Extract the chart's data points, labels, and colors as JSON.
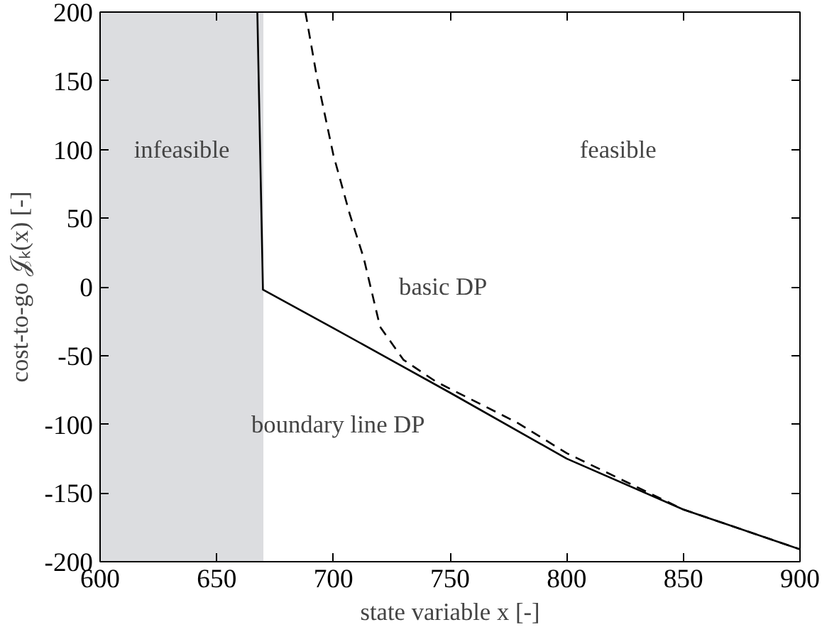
{
  "chart_data": {
    "type": "line",
    "xlabel": "state variable x [-]",
    "ylabel": "cost-to-go 𝒥ₖ(x) [-]",
    "xlim": [
      600,
      900
    ],
    "ylim": [
      -200,
      200
    ],
    "xticks": [
      600,
      650,
      700,
      750,
      800,
      850,
      900
    ],
    "yticks": [
      -200,
      -150,
      -100,
      -50,
      0,
      50,
      100,
      150,
      200
    ],
    "grid": false,
    "series": [
      {
        "x": [
          667.4,
          669.8,
          700,
          750,
          800,
          850,
          900
        ],
        "values": [
          200,
          -2,
          -30,
          -77,
          -125,
          -162,
          -191
        ],
        "color": "#000000",
        "line_style": "solid"
      },
      {
        "x": [
          688,
          693,
          700,
          707,
          713,
          720,
          730,
          744,
          779,
          800,
          850,
          900
        ],
        "values": [
          200,
          152,
          96,
          53,
          21,
          -29,
          -53,
          -69,
          -99,
          -121,
          -162,
          -191
        ],
        "color": "#000000",
        "line_style": "dashed"
      }
    ],
    "bands": [
      {
        "axis": "x",
        "from": 600,
        "to": 670,
        "label": "infeasible",
        "color": "#dcdde0"
      }
    ],
    "annotations": [
      "feasible",
      "basic DP",
      "boundary line DP"
    ]
  }
}
